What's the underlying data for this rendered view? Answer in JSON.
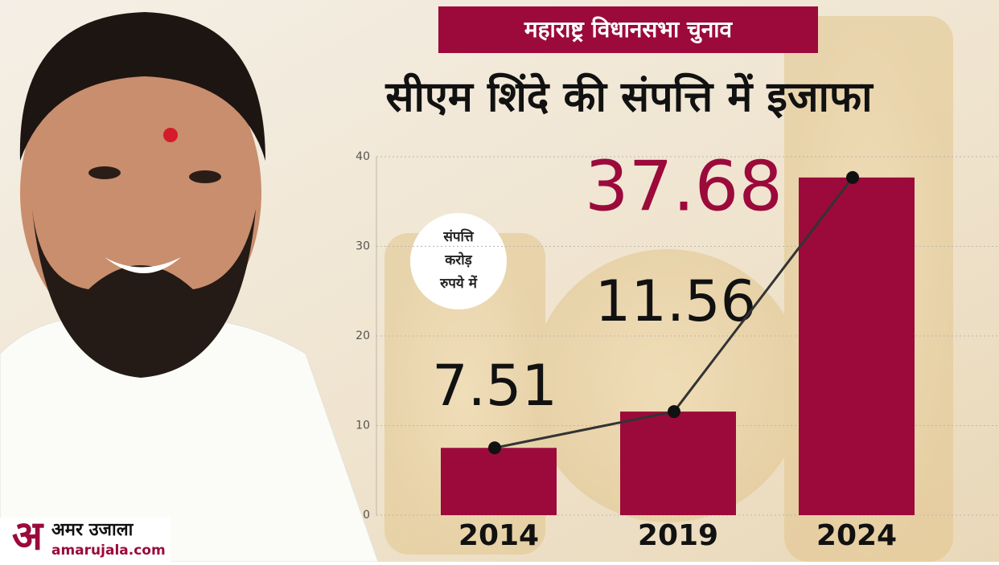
{
  "chart_data": {
    "type": "bar",
    "subtitle": "महाराष्ट्र विधानसभा चुनाव",
    "title": "सीएम शिंदे की संपत्ति में इजाफा",
    "unit_label": [
      "संपत्ति",
      "करोड़",
      "रुपये में"
    ],
    "categories": [
      "2014",
      "2019",
      "2024"
    ],
    "values": [
      7.51,
      11.56,
      37.68
    ],
    "value_label_colors": [
      "#111111",
      "#111111",
      "#9b0a3b"
    ],
    "color": "#9b0a3b",
    "line_color": "#333333",
    "ylim": [
      0,
      40
    ],
    "yticks": [
      0,
      10,
      20,
      30,
      40
    ],
    "grid": true
  },
  "branding": {
    "logo_letter": "अ",
    "logo_name": "अमर उजाला",
    "website": "amarujala.com"
  }
}
